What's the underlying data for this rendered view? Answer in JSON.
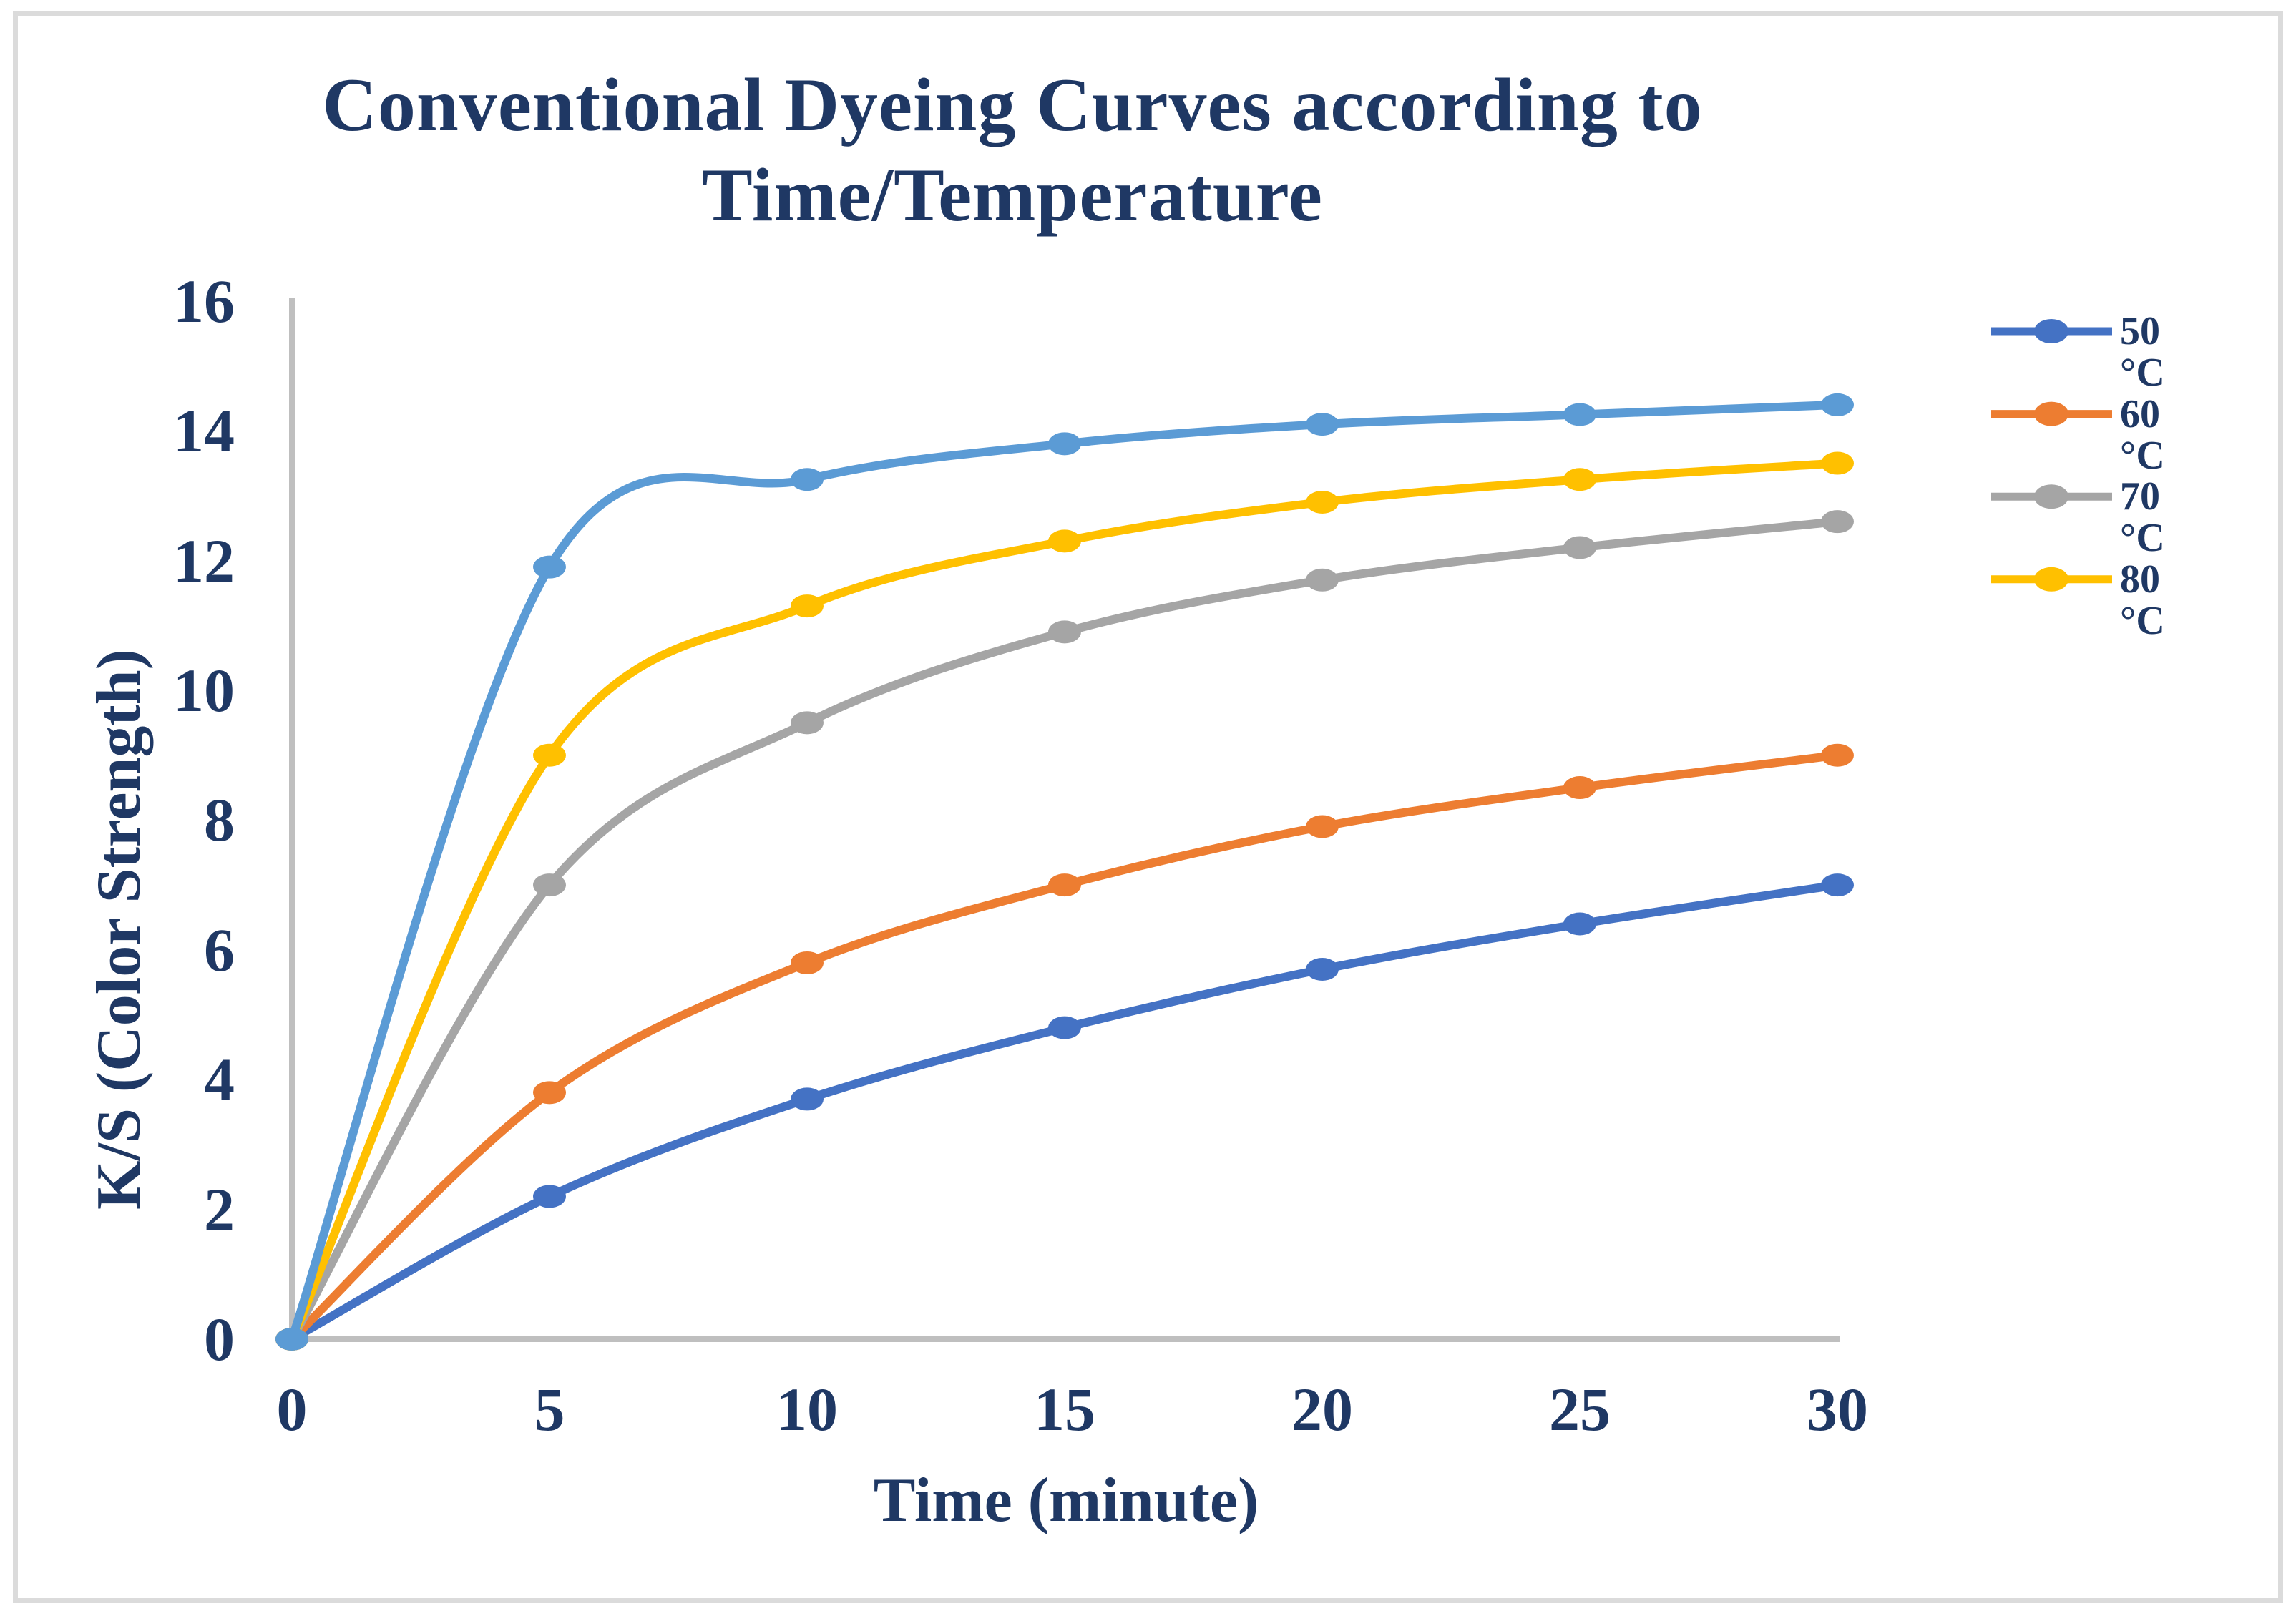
{
  "page": {
    "background_color": "#FFFFFF",
    "border_color": "#DBDBDB"
  },
  "chart": {
    "title_line1": "Conventional Dyeing Curves according to",
    "title_line2": "Time/Temperature",
    "y_axis_title": "K/S (Color Strength)",
    "x_axis_title": "Time (minute)",
    "text_color": "#1F3864",
    "axis_line_color": "#BFBFBF"
  },
  "chart_data": {
    "type": "line",
    "title": "Conventional Dyeing Curves according to Time/Temperature",
    "xlabel": "Time (minute)",
    "ylabel": "K/S (Color Strength)",
    "xlim": [
      0,
      30
    ],
    "ylim": [
      0,
      16
    ],
    "grid": false,
    "smooth_lines": true,
    "markers": "filled-circle",
    "legend_position": "right",
    "x": [
      0,
      5,
      10,
      15,
      20,
      25,
      30
    ],
    "x_tick_labels": [
      "0",
      "5",
      "10",
      "15",
      "20",
      "25",
      "30"
    ],
    "y_tick_labels": [
      "0",
      "2",
      "4",
      "6",
      "8",
      "10",
      "12",
      "14",
      "16"
    ],
    "y_ticks": [
      0,
      2,
      4,
      6,
      8,
      10,
      12,
      14,
      16
    ],
    "series": [
      {
        "name": "50 °C",
        "legend_line1": "50",
        "legend_line2": "°C",
        "in_legend": true,
        "color": "#4472C4",
        "values": [
          0,
          2.2,
          3.7,
          4.8,
          5.7,
          6.4,
          7.0
        ]
      },
      {
        "name": "60 °C",
        "legend_line1": "60",
        "legend_line2": "°C",
        "in_legend": true,
        "color": "#ED7D31",
        "values": [
          0,
          3.8,
          5.8,
          7.0,
          7.9,
          8.5,
          9.0
        ]
      },
      {
        "name": "70 °C",
        "legend_line1": "70",
        "legend_line2": "°C",
        "in_legend": true,
        "color": "#A5A5A5",
        "values": [
          0,
          7.0,
          9.5,
          10.9,
          11.7,
          12.2,
          12.6
        ]
      },
      {
        "name": "80 °C",
        "legend_line1": "80",
        "legend_line2": "°C",
        "in_legend": true,
        "color": "#FFC000",
        "values": [
          0,
          9.0,
          11.3,
          12.3,
          12.9,
          13.25,
          13.5
        ]
      },
      {
        "name": "",
        "legend_line1": "",
        "legend_line2": "",
        "in_legend": false,
        "color": "#5B9BD5",
        "values": [
          0,
          11.9,
          13.25,
          13.8,
          14.1,
          14.25,
          14.4
        ]
      }
    ]
  }
}
